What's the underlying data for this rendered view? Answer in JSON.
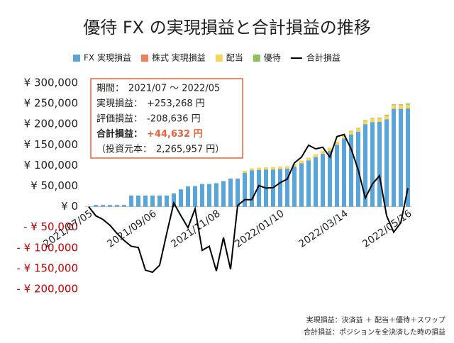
{
  "chart_data": {
    "type": "bar",
    "title": "優待 FX の実現損益と合計損益の推移",
    "categories": [
      "2021/07/05",
      null,
      null,
      null,
      null,
      null,
      null,
      null,
      null,
      "2021/09/06",
      null,
      null,
      null,
      null,
      null,
      null,
      null,
      null,
      "2021/11/08",
      null,
      null,
      null,
      null,
      null,
      null,
      null,
      null,
      "2022/01/10",
      null,
      null,
      null,
      null,
      null,
      null,
      null,
      null,
      "2022/03/14",
      null,
      null,
      null,
      null,
      null,
      null,
      null,
      null,
      "2022/05/16"
    ],
    "series": [
      {
        "name": "FX 実現損益",
        "type": "bar",
        "color": "#5aa5d8",
        "values": [
          0,
          4000,
          4000,
          4000,
          4000,
          4000,
          27000,
          27000,
          27000,
          27000,
          27000,
          27000,
          32000,
          42000,
          49000,
          50000,
          55000,
          55000,
          57000,
          62000,
          68000,
          68000,
          82000,
          88000,
          89000,
          90000,
          90000,
          91000,
          92000,
          97000,
          105000,
          112000,
          120000,
          128000,
          135000,
          150000,
          165000,
          175000,
          182000,
          200000,
          205000,
          206000,
          212000,
          237000,
          237000,
          238000
        ]
      },
      {
        "name": "株式 実現損益",
        "type": "bar",
        "color": "#f0805a",
        "values": [
          0,
          0,
          0,
          0,
          0,
          0,
          0,
          0,
          0,
          0,
          0,
          0,
          0,
          0,
          0,
          0,
          0,
          0,
          0,
          0,
          0,
          0,
          0,
          0,
          0,
          0,
          0,
          0,
          0,
          0,
          0,
          0,
          0,
          0,
          0,
          0,
          0,
          0,
          0,
          0,
          0,
          0,
          0,
          0,
          0,
          0
        ]
      },
      {
        "name": "配当",
        "type": "bar",
        "color": "#f5d55a",
        "values": [
          0,
          0,
          0,
          0,
          0,
          0,
          0,
          0,
          0,
          0,
          0,
          0,
          0,
          0,
          0,
          0,
          0,
          0,
          0,
          0,
          0,
          0,
          5000,
          5000,
          5500,
          5500,
          6000,
          6000,
          6000,
          6500,
          6500,
          7000,
          7000,
          7000,
          7500,
          7500,
          8000,
          8000,
          8000,
          8500,
          8500,
          8500,
          9000,
          9000,
          9000,
          9500
        ]
      },
      {
        "name": "優待",
        "type": "bar",
        "color": "#8dbf5a",
        "values": [
          0,
          0,
          0,
          0,
          0,
          0,
          0,
          0,
          0,
          0,
          0,
          0,
          0,
          0,
          0,
          0,
          0,
          0,
          0,
          0,
          0,
          0,
          0,
          0,
          0,
          0,
          0,
          0,
          0,
          0,
          0,
          0,
          0,
          0,
          0,
          0,
          1000,
          1000,
          1000,
          1500,
          1500,
          1500,
          2000,
          2000,
          2000,
          2500
        ]
      },
      {
        "name": "合計損益",
        "type": "line",
        "color": "#000000",
        "values": [
          0,
          -22000,
          -31000,
          -45000,
          -65000,
          -82000,
          -96000,
          -99000,
          -154000,
          -159000,
          -142000,
          -65000,
          9000,
          -22000,
          -51000,
          -5000,
          -106000,
          -96000,
          -156000,
          -75000,
          -152000,
          3000,
          17000,
          17000,
          51000,
          45000,
          46000,
          58000,
          67000,
          106000,
          120000,
          149000,
          140000,
          144000,
          120000,
          170000,
          175000,
          140000,
          89000,
          21000,
          55000,
          75000,
          -22000,
          -62000,
          -39000,
          44632
        ]
      }
    ],
    "ylim": [
      -200000,
      300000
    ],
    "yticks": [
      {
        "value": -200000,
        "label": "- ¥ 200,000"
      },
      {
        "value": -150000,
        "label": "- ¥ 150,000"
      },
      {
        "value": -100000,
        "label": "- ¥ 100,000"
      },
      {
        "value": -50000,
        "label": "- ¥ 50,000"
      },
      {
        "value": 0,
        "label": "¥ 0"
      },
      {
        "value": 50000,
        "label": "¥ 50,000"
      },
      {
        "value": 100000,
        "label": "¥ 100,000"
      },
      {
        "value": 150000,
        "label": "¥ 150,000"
      },
      {
        "value": 200000,
        "label": "¥ 200,000"
      },
      {
        "value": 250000,
        "label": "¥ 250,000"
      },
      {
        "value": 300000,
        "label": "¥ 300,000"
      }
    ],
    "negative_tick_color": "#c00000",
    "grid": false,
    "legend": "top",
    "summary": [
      {
        "label": "期間：",
        "text": "2021/07 ～ 2022/05"
      },
      {
        "label": "実現損益：",
        "text": "+253,268 円"
      },
      {
        "label": "評価損益：",
        "text": "-208,636 円"
      },
      {
        "label": "合計損益：",
        "text": "+44,632 円"
      },
      {
        "label": "（投資元本：",
        "text": "2,265,957 円）"
      }
    ],
    "footnotes": [
      "実現損益：決済益 ＋ 配当＋優待＋スワップ",
      "合計損益：ポジションを全決済した時の損益"
    ]
  }
}
